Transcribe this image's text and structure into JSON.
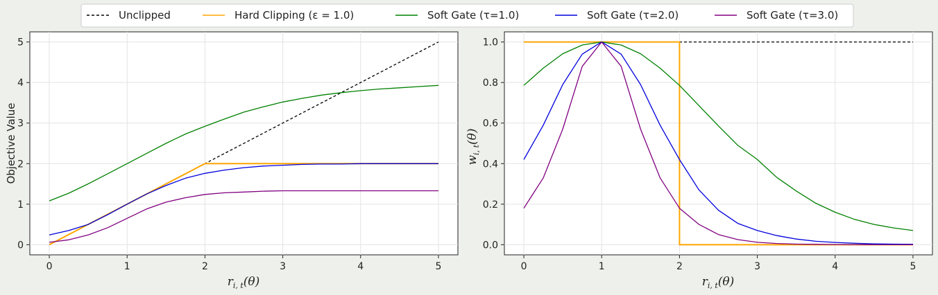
{
  "legend": [
    {
      "label": "Unclipped",
      "color": "#000000",
      "dashed": true
    },
    {
      "label": "Hard Clipping (ε = 1.0)",
      "color": "#ffa500",
      "dashed": false
    },
    {
      "label": "Soft Gate (τ=1.0)",
      "color": "#008000",
      "dashed": false
    },
    {
      "label": "Soft Gate (τ=2.0)",
      "color": "#0000dd",
      "dashed": false
    },
    {
      "label": "Soft Gate (τ=3.0)",
      "color": "#800080",
      "dashed": false
    }
  ],
  "chart_data": [
    {
      "type": "line",
      "xlabel": "r_{i,t}(θ)",
      "xlabel_main": "r",
      "xlabel_sub": "i, t",
      "xlabel_tail": "(θ)",
      "ylabel": "Objective Value",
      "xlim": [
        -0.25,
        5.25
      ],
      "ylim": [
        -0.25,
        5.25
      ],
      "xticks": [
        0,
        1,
        2,
        3,
        4,
        5
      ],
      "yticks": [
        0,
        1,
        2,
        3,
        4,
        5
      ],
      "xtick_labels": [
        "0",
        "1",
        "2",
        "3",
        "4",
        "5"
      ],
      "ytick_labels": [
        "0",
        "1",
        "2",
        "3",
        "4",
        "5"
      ],
      "grid": true,
      "series": [
        {
          "name": "Unclipped",
          "color": "#000000",
          "dashed": true,
          "x": [
            0,
            1,
            2,
            3,
            4,
            5
          ],
          "y": [
            0,
            1,
            2,
            3,
            4,
            5
          ]
        },
        {
          "name": "Hard Clipping (ε = 1.0)",
          "color": "#ffa500",
          "dashed": false,
          "x": [
            0,
            2,
            2.5,
            3,
            4,
            5
          ],
          "y": [
            0,
            2,
            2,
            2,
            2,
            2
          ]
        },
        {
          "name": "Soft Gate (τ=1.0)",
          "color": "#008000",
          "dashed": false,
          "x": [
            0,
            0.25,
            0.5,
            0.75,
            1,
            1.25,
            1.5,
            1.75,
            2,
            2.25,
            2.5,
            2.75,
            3,
            3.25,
            3.5,
            3.75,
            4,
            4.25,
            4.5,
            4.75,
            5
          ],
          "y": [
            1.08,
            1.27,
            1.5,
            1.75,
            2.0,
            2.25,
            2.5,
            2.73,
            2.92,
            3.1,
            3.27,
            3.4,
            3.52,
            3.61,
            3.69,
            3.75,
            3.8,
            3.84,
            3.87,
            3.9,
            3.93
          ]
        },
        {
          "name": "Soft Gate (τ=2.0)",
          "color": "#0000dd",
          "dashed": false,
          "x": [
            0,
            0.25,
            0.5,
            0.75,
            1,
            1.25,
            1.5,
            1.75,
            2,
            2.25,
            2.5,
            2.75,
            3,
            3.25,
            3.5,
            3.75,
            4,
            4.25,
            4.5,
            4.75,
            5
          ],
          "y": [
            0.24,
            0.35,
            0.5,
            0.74,
            1.0,
            1.25,
            1.46,
            1.64,
            1.76,
            1.84,
            1.9,
            1.94,
            1.96,
            1.98,
            1.99,
            1.99,
            2.0,
            2.0,
            2.0,
            2.0,
            2.0
          ]
        },
        {
          "name": "Soft Gate (τ=3.0)",
          "color": "#800080",
          "dashed": false,
          "x": [
            0,
            0.25,
            0.5,
            0.75,
            1,
            1.25,
            1.5,
            1.75,
            2,
            2.25,
            2.5,
            2.75,
            3,
            3.25,
            3.5,
            3.75,
            4,
            4.25,
            4.5,
            4.75,
            5
          ],
          "y": [
            0.06,
            0.12,
            0.24,
            0.42,
            0.65,
            0.88,
            1.05,
            1.16,
            1.24,
            1.28,
            1.3,
            1.32,
            1.33,
            1.33,
            1.33,
            1.33,
            1.33,
            1.33,
            1.33,
            1.33,
            1.33
          ]
        }
      ]
    },
    {
      "type": "line",
      "xlabel": "r_{i,t}(θ)",
      "xlabel_main": "r",
      "xlabel_sub": "i, t",
      "xlabel_tail": "(θ)",
      "ylabel": "w_{i,t}(θ)",
      "ylabel_main": "w",
      "ylabel_sub": "i, t",
      "ylabel_tail": "(θ)",
      "xlim": [
        -0.25,
        5.25
      ],
      "ylim": [
        -0.05,
        1.05
      ],
      "xticks": [
        0,
        1,
        2,
        3,
        4,
        5
      ],
      "yticks": [
        0.0,
        0.2,
        0.4,
        0.6,
        0.8,
        1.0
      ],
      "xtick_labels": [
        "0",
        "1",
        "2",
        "3",
        "4",
        "5"
      ],
      "ytick_labels": [
        "0.0",
        "0.2",
        "0.4",
        "0.6",
        "0.8",
        "1.0"
      ],
      "grid": true,
      "series": [
        {
          "name": "Unclipped",
          "color": "#000000",
          "dashed": true,
          "x": [
            0,
            5
          ],
          "y": [
            1,
            1
          ]
        },
        {
          "name": "Hard Clipping (ε = 1.0)",
          "color": "#ffa500",
          "dashed": false,
          "x": [
            0,
            2,
            2,
            5
          ],
          "y": [
            1,
            1,
            0,
            0
          ]
        },
        {
          "name": "Soft Gate (τ=1.0)",
          "color": "#008000",
          "dashed": false,
          "x": [
            0,
            0.25,
            0.5,
            0.75,
            1,
            1.25,
            1.5,
            1.75,
            2,
            2.25,
            2.5,
            2.75,
            3,
            3.25,
            3.5,
            3.75,
            4,
            4.25,
            4.5,
            4.75,
            5
          ],
          "y": [
            0.786,
            0.871,
            0.942,
            0.985,
            1.0,
            0.985,
            0.942,
            0.871,
            0.786,
            0.686,
            0.586,
            0.49,
            0.42,
            0.332,
            0.265,
            0.205,
            0.16,
            0.125,
            0.1,
            0.083,
            0.07
          ]
        },
        {
          "name": "Soft Gate (τ=2.0)",
          "color": "#0000dd",
          "dashed": false,
          "x": [
            0,
            0.25,
            0.5,
            0.75,
            1,
            1.25,
            1.5,
            1.75,
            2,
            2.25,
            2.5,
            2.75,
            3,
            3.25,
            3.5,
            3.75,
            4,
            4.25,
            4.5,
            4.75,
            5
          ],
          "y": [
            0.42,
            0.59,
            0.79,
            0.94,
            1.0,
            0.94,
            0.79,
            0.59,
            0.42,
            0.27,
            0.17,
            0.105,
            0.07,
            0.045,
            0.028,
            0.017,
            0.011,
            0.007,
            0.004,
            0.003,
            0.002
          ]
        },
        {
          "name": "Soft Gate (τ=3.0)",
          "color": "#800080",
          "dashed": false,
          "x": [
            0,
            0.25,
            0.5,
            0.75,
            1,
            1.25,
            1.5,
            1.75,
            2,
            2.25,
            2.5,
            2.75,
            3,
            3.25,
            3.5,
            3.75,
            4,
            4.25,
            4.5,
            4.75,
            5
          ],
          "y": [
            0.18,
            0.33,
            0.57,
            0.88,
            1.0,
            0.88,
            0.57,
            0.33,
            0.18,
            0.1,
            0.05,
            0.025,
            0.012,
            0.006,
            0.003,
            0.002,
            0.001,
            0.0,
            0.0,
            0.0,
            0.0
          ]
        }
      ]
    }
  ]
}
